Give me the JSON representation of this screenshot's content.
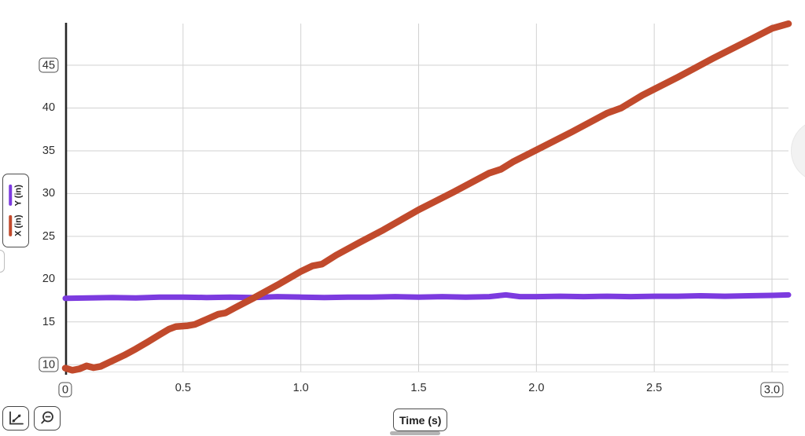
{
  "chart_data": {
    "type": "line",
    "title": "",
    "xlabel": "Time (s)",
    "ylabel": "",
    "grid": true,
    "legend_position": "left-rotated",
    "xlim": [
      0,
      3.07
    ],
    "ylim": [
      9.1,
      49.87
    ],
    "x_ticks": [
      {
        "value": 0,
        "label": "0",
        "boxed": true
      },
      {
        "value": 0.5,
        "label": "0.5",
        "boxed": false
      },
      {
        "value": 1.0,
        "label": "1.0",
        "boxed": false
      },
      {
        "value": 1.5,
        "label": "1.5",
        "boxed": false
      },
      {
        "value": 2.0,
        "label": "2.0",
        "boxed": false
      },
      {
        "value": 2.5,
        "label": "2.5",
        "boxed": false
      },
      {
        "value": 3.0,
        "label": "3.0",
        "boxed": true
      }
    ],
    "y_ticks": [
      {
        "value": 45,
        "label": "45",
        "boxed": true
      },
      {
        "value": 40,
        "label": "40",
        "boxed": false
      },
      {
        "value": 35,
        "label": "35",
        "boxed": false
      },
      {
        "value": 30,
        "label": "30",
        "boxed": false
      },
      {
        "value": 25,
        "label": "25",
        "boxed": false
      },
      {
        "value": 20,
        "label": "20",
        "boxed": false
      },
      {
        "value": 15,
        "label": "15",
        "boxed": false
      },
      {
        "value": 10,
        "label": "10",
        "boxed": true
      }
    ],
    "series": [
      {
        "name": "Y (in)",
        "color": "#7c3bdf",
        "points": [
          [
            0,
            17.75
          ],
          [
            0.1,
            17.8
          ],
          [
            0.2,
            17.85
          ],
          [
            0.3,
            17.8
          ],
          [
            0.4,
            17.9
          ],
          [
            0.5,
            17.9
          ],
          [
            0.6,
            17.85
          ],
          [
            0.7,
            17.9
          ],
          [
            0.8,
            17.85
          ],
          [
            0.9,
            17.95
          ],
          [
            1.0,
            17.9
          ],
          [
            1.1,
            17.85
          ],
          [
            1.2,
            17.9
          ],
          [
            1.3,
            17.9
          ],
          [
            1.4,
            17.95
          ],
          [
            1.5,
            17.9
          ],
          [
            1.6,
            17.95
          ],
          [
            1.7,
            17.9
          ],
          [
            1.8,
            17.95
          ],
          [
            1.87,
            18.15
          ],
          [
            1.93,
            17.95
          ],
          [
            2.0,
            17.95
          ],
          [
            2.1,
            18.0
          ],
          [
            2.2,
            17.95
          ],
          [
            2.3,
            18.0
          ],
          [
            2.4,
            17.95
          ],
          [
            2.5,
            18.0
          ],
          [
            2.6,
            18.0
          ],
          [
            2.7,
            18.05
          ],
          [
            2.8,
            18.0
          ],
          [
            2.9,
            18.05
          ],
          [
            3.0,
            18.1
          ],
          [
            3.07,
            18.15
          ]
        ]
      },
      {
        "name": "X (in)",
        "color": "#c14a2c",
        "points": [
          [
            0,
            9.6
          ],
          [
            0.03,
            9.35
          ],
          [
            0.06,
            9.5
          ],
          [
            0.09,
            9.85
          ],
          [
            0.12,
            9.65
          ],
          [
            0.15,
            9.8
          ],
          [
            0.2,
            10.45
          ],
          [
            0.25,
            11.1
          ],
          [
            0.3,
            11.85
          ],
          [
            0.35,
            12.65
          ],
          [
            0.4,
            13.5
          ],
          [
            0.44,
            14.15
          ],
          [
            0.47,
            14.45
          ],
          [
            0.52,
            14.55
          ],
          [
            0.55,
            14.7
          ],
          [
            0.6,
            15.3
          ],
          [
            0.65,
            15.9
          ],
          [
            0.68,
            16.05
          ],
          [
            0.72,
            16.65
          ],
          [
            0.8,
            17.8
          ],
          [
            0.9,
            19.3
          ],
          [
            1.0,
            20.9
          ],
          [
            1.05,
            21.55
          ],
          [
            1.09,
            21.75
          ],
          [
            1.15,
            22.8
          ],
          [
            1.25,
            24.3
          ],
          [
            1.35,
            25.75
          ],
          [
            1.5,
            28.1
          ],
          [
            1.65,
            30.2
          ],
          [
            1.8,
            32.4
          ],
          [
            1.85,
            32.85
          ],
          [
            1.9,
            33.7
          ],
          [
            2.0,
            35.1
          ],
          [
            2.15,
            37.2
          ],
          [
            2.3,
            39.4
          ],
          [
            2.36,
            40.0
          ],
          [
            2.45,
            41.5
          ],
          [
            2.6,
            43.6
          ],
          [
            2.75,
            45.8
          ],
          [
            2.9,
            47.9
          ],
          [
            3.0,
            49.3
          ],
          [
            3.07,
            49.85
          ]
        ]
      }
    ]
  },
  "legend": {
    "items": [
      {
        "label": "X (in)",
        "color": "#c14a2c"
      },
      {
        "label": "Y (in)",
        "color": "#7c3bdf"
      }
    ]
  },
  "toolbar": {
    "buttons": [
      {
        "name": "graph-tools"
      },
      {
        "name": "zoom-fit"
      }
    ]
  },
  "colors": {
    "axis": "#262626",
    "grid": "#d2d2d2",
    "plot_border": "#e4e4e4",
    "tick_text": "#2e2e2e",
    "box_border": "#4d4d4d",
    "series_x": "#c14a2c",
    "series_y": "#7c3bdf"
  }
}
